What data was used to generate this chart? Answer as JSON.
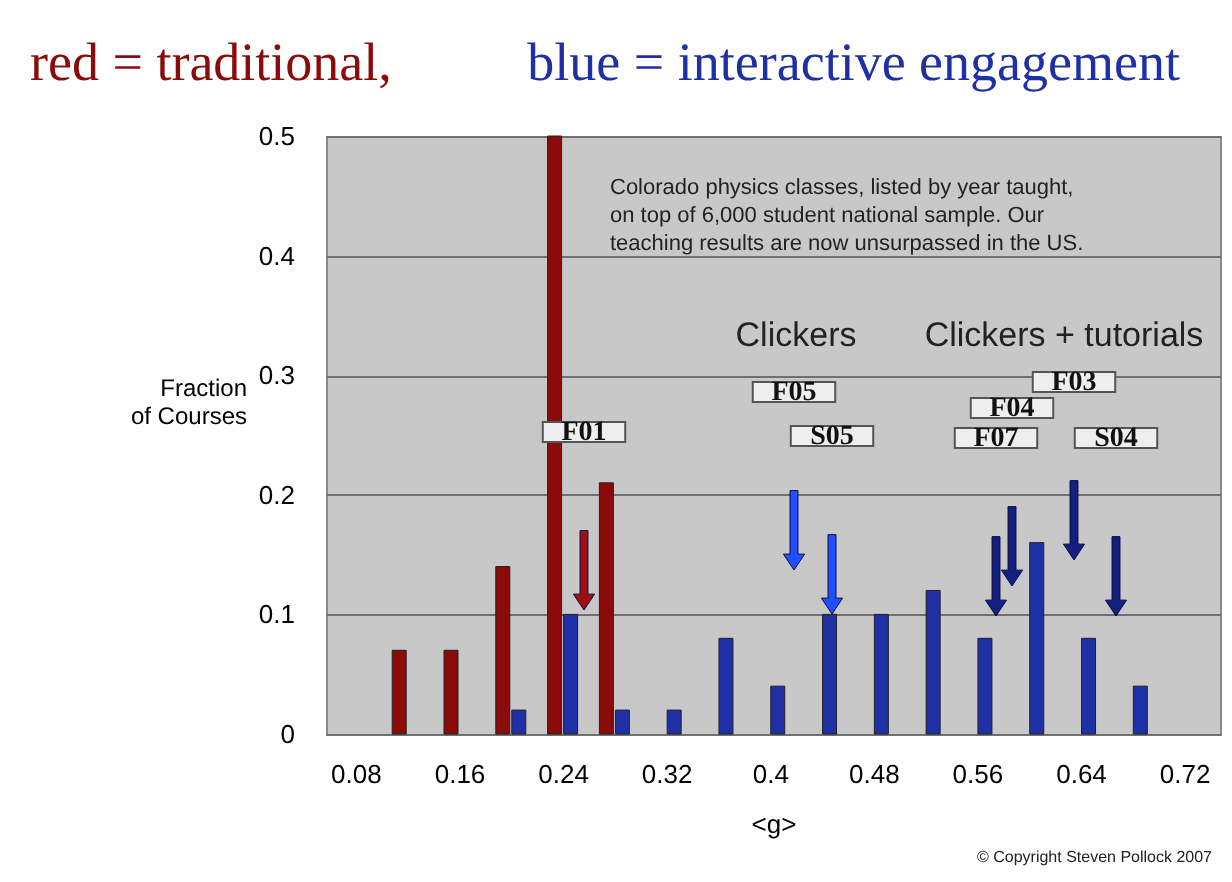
{
  "chart_data": {
    "type": "bar",
    "xlabel": "<g>",
    "ylabel": "Fraction of Courses",
    "x": [
      0.12,
      0.16,
      0.2,
      0.24,
      0.28,
      0.32,
      0.36,
      0.4,
      0.44,
      0.48,
      0.52,
      0.56,
      0.6,
      0.64,
      0.68
    ],
    "series": [
      {
        "name": "red = traditional,",
        "color": "#8b0b0b",
        "values": [
          0.07,
          0.07,
          0.14,
          0.5,
          0.21,
          null,
          null,
          null,
          null,
          null,
          null,
          null,
          null,
          null,
          null
        ]
      },
      {
        "name": "blue = interactive engagement",
        "color": "#1f2fa5",
        "values": [
          null,
          null,
          0.02,
          0.1,
          0.02,
          0.02,
          0.08,
          0.04,
          0.1,
          0.1,
          0.12,
          0.08,
          0.16,
          0.08,
          0.04
        ]
      }
    ],
    "xlim": [
      0.065,
      0.74
    ],
    "xticks": [
      0.08,
      0.16,
      0.24,
      0.32,
      0.4,
      0.48,
      0.56,
      0.64,
      0.72
    ],
    "ylim": [
      0,
      0.5
    ],
    "yticks": [
      0,
      0.1,
      0.2,
      0.3,
      0.4,
      0.5
    ],
    "grid": "y",
    "annotations": [
      "Colorado physics classes, listed by year taught, on top of 6,000 student national sample. Our teaching results are now unsurpassed in the US.",
      "Clickers",
      "Clickers + tutorials",
      "© Copyright Steven Pollock 2007",
      "F01",
      "F05",
      "S05",
      "F07",
      "F04",
      "F03",
      "S04"
    ]
  }
}
